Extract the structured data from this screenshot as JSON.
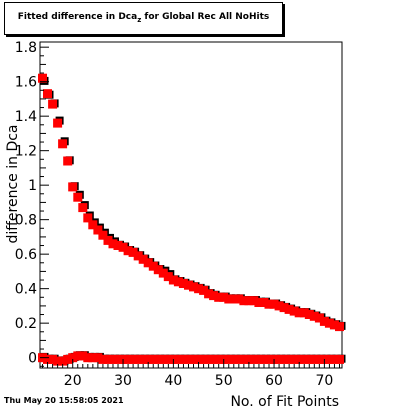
{
  "title": {
    "main": "Fitted difference in Dca",
    "subscript": "z",
    "rest": " for Global Rec All NoHits"
  },
  "timestamp": "Thu May 20 15:58:05 2021",
  "chart_data": {
    "type": "scatter",
    "xlabel": "No. of Fit Points",
    "ylabel": "difference in Dca",
    "xlim": [
      13.5,
      73.5
    ],
    "ylim": [
      -0.06,
      1.83
    ],
    "x_ticks": [
      "20",
      "30",
      "40",
      "50",
      "60",
      "70"
    ],
    "y_ticks": [
      "0",
      "0.2",
      "0.4",
      "0.6",
      "0.8",
      "1",
      "1.2",
      "1.4",
      "1.6",
      "1.8"
    ],
    "grid": false,
    "colors": {
      "red": "#ff0000",
      "black": "#000000"
    },
    "series": [
      {
        "color": "black",
        "x": [
          14,
          15,
          16,
          17,
          18,
          19,
          20,
          21,
          22,
          23,
          24,
          25,
          26,
          27,
          28,
          29,
          30,
          31,
          32,
          33,
          34,
          35,
          36,
          37,
          38,
          39,
          40,
          41,
          42,
          43,
          44,
          45,
          46,
          47,
          48,
          49,
          50,
          51,
          52,
          53,
          54,
          55,
          56,
          57,
          58,
          59,
          60,
          61,
          62,
          63,
          64,
          65,
          66,
          67,
          68,
          69,
          70,
          71,
          72,
          73
        ],
        "y": [
          1.61,
          1.53,
          1.48,
          1.38,
          1.26,
          1.15,
          1.0,
          0.95,
          0.89,
          0.83,
          0.79,
          0.76,
          0.73,
          0.7,
          0.68,
          0.66,
          0.65,
          0.63,
          0.62,
          0.6,
          0.58,
          0.56,
          0.54,
          0.52,
          0.51,
          0.49,
          0.46,
          0.45,
          0.44,
          0.43,
          0.42,
          0.41,
          0.4,
          0.38,
          0.37,
          0.36,
          0.36,
          0.35,
          0.35,
          0.35,
          0.34,
          0.34,
          0.34,
          0.33,
          0.33,
          0.32,
          0.32,
          0.31,
          0.3,
          0.29,
          0.28,
          0.27,
          0.27,
          0.26,
          0.25,
          0.24,
          0.22,
          0.21,
          0.2,
          0.19
        ]
      },
      {
        "color": "red",
        "x": [
          14,
          15,
          16,
          17,
          18,
          19,
          20,
          21,
          22,
          23,
          24,
          25,
          26,
          27,
          28,
          29,
          30,
          31,
          32,
          33,
          34,
          35,
          36,
          37,
          38,
          39,
          40,
          41,
          42,
          43,
          44,
          45,
          46,
          47,
          48,
          49,
          50,
          51,
          52,
          53,
          54,
          55,
          56,
          57,
          58,
          59,
          60,
          61,
          62,
          63,
          64,
          65,
          66,
          67,
          68,
          69,
          70,
          71,
          72,
          73
        ],
        "y": [
          1.62,
          1.53,
          1.47,
          1.36,
          1.24,
          1.14,
          0.99,
          0.93,
          0.87,
          0.81,
          0.77,
          0.74,
          0.71,
          0.68,
          0.66,
          0.65,
          0.64,
          0.62,
          0.61,
          0.59,
          0.57,
          0.55,
          0.53,
          0.51,
          0.49,
          0.47,
          0.45,
          0.44,
          0.43,
          0.42,
          0.41,
          0.4,
          0.39,
          0.37,
          0.36,
          0.35,
          0.35,
          0.34,
          0.34,
          0.34,
          0.33,
          0.33,
          0.33,
          0.32,
          0.32,
          0.31,
          0.31,
          0.3,
          0.29,
          0.28,
          0.27,
          0.26,
          0.26,
          0.25,
          0.24,
          0.23,
          0.21,
          0.2,
          0.19,
          0.18
        ]
      },
      {
        "color": "black",
        "x": [
          14,
          15,
          16,
          17,
          18,
          19,
          20,
          21,
          22,
          23,
          24,
          25,
          26,
          27,
          28,
          29,
          30,
          31,
          32,
          33,
          34,
          35,
          36,
          37,
          38,
          39,
          40,
          41,
          42,
          43,
          44,
          45,
          46,
          47,
          48,
          49,
          50,
          51,
          52,
          53,
          54,
          55,
          56,
          57,
          58,
          59,
          60,
          61,
          62,
          63,
          64,
          65,
          66,
          67,
          68,
          69,
          70,
          71,
          72,
          73
        ],
        "y": [
          0.01,
          0.0,
          0.0,
          -0.01,
          -0.01,
          0.0,
          0.01,
          0.02,
          0.02,
          0.01,
          0.01,
          0.01,
          0.0,
          0.0,
          0.0,
          0.0,
          0.0,
          0.0,
          0.0,
          0.0,
          0.0,
          0.0,
          0.0,
          0.0,
          0.0,
          0.0,
          0.0,
          0.0,
          0.0,
          0.0,
          0.0,
          0.0,
          0.0,
          0.0,
          0.0,
          0.0,
          0.0,
          0.0,
          0.0,
          0.0,
          0.0,
          0.0,
          0.0,
          0.0,
          0.0,
          0.0,
          0.0,
          0.0,
          0.0,
          0.0,
          0.0,
          0.0,
          0.0,
          0.0,
          0.0,
          0.0,
          0.0,
          0.0,
          0.0,
          0.0
        ]
      },
      {
        "color": "red",
        "x": [
          14,
          15,
          16,
          17,
          18,
          19,
          20,
          21,
          22,
          23,
          24,
          25,
          26,
          27,
          28,
          29,
          30,
          31,
          32,
          33,
          34,
          35,
          36,
          37,
          38,
          39,
          40,
          41,
          42,
          43,
          44,
          45,
          46,
          47,
          48,
          49,
          50,
          51,
          52,
          53,
          54,
          55,
          56,
          57,
          58,
          59,
          60,
          61,
          62,
          63,
          64,
          65,
          66,
          67,
          68,
          69,
          70,
          71,
          72,
          73
        ],
        "y": [
          0.0,
          -0.01,
          -0.01,
          -0.02,
          -0.02,
          -0.01,
          0.0,
          0.01,
          0.01,
          0.0,
          0.0,
          0.0,
          -0.01,
          -0.01,
          -0.01,
          -0.01,
          -0.01,
          -0.01,
          -0.01,
          -0.01,
          -0.01,
          -0.01,
          -0.01,
          -0.01,
          -0.01,
          -0.01,
          -0.01,
          -0.01,
          -0.01,
          -0.01,
          -0.01,
          -0.01,
          -0.01,
          -0.01,
          -0.01,
          -0.01,
          -0.01,
          -0.01,
          -0.01,
          -0.01,
          -0.01,
          -0.01,
          -0.01,
          -0.01,
          -0.01,
          -0.01,
          -0.01,
          -0.01,
          -0.01,
          -0.01,
          -0.01,
          -0.01,
          -0.01,
          -0.01,
          -0.01,
          -0.01,
          -0.01,
          -0.01,
          -0.01,
          -0.01
        ]
      }
    ]
  }
}
